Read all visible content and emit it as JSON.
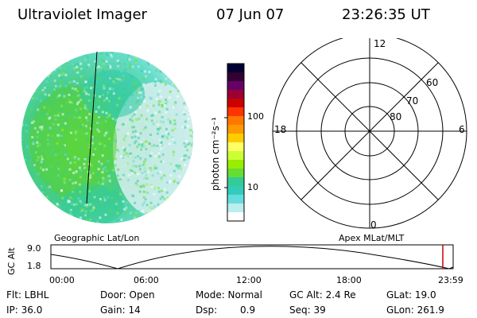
{
  "header": {
    "title": "Ultraviolet Imager",
    "date": "07 Jun 07",
    "time": "23:26:35 UT"
  },
  "colorbar": {
    "unit_label": "photon cm⁻²s⁻¹",
    "ticks": [
      "100",
      "10"
    ],
    "colors": [
      "#000033",
      "#330033",
      "#660066",
      "#990033",
      "#cc0000",
      "#ff3300",
      "#ff7700",
      "#ff9900",
      "#ffcc00",
      "#ffff66",
      "#ccff33",
      "#99ee00",
      "#66dd33",
      "#33cc99",
      "#33ccbb",
      "#66dddd",
      "#bbeeee",
      "#ffffff"
    ]
  },
  "polar": {
    "hour_labels": {
      "top": "12",
      "left": "18",
      "right": "6",
      "bottom": "0"
    },
    "lat_labels": [
      "60",
      "70",
      "80"
    ]
  },
  "labels": {
    "left_panel": "Geographic Lat/Lon",
    "right_panel": "Apex MLat/MLT"
  },
  "altitude_plot": {
    "ylabel": "GC Alt",
    "yticks": [
      "9.0",
      "1.8"
    ],
    "xticks": [
      "00:00",
      "06:00",
      "12:00",
      "18:00",
      "23:59"
    ],
    "marker_color": "#cc0000"
  },
  "status": {
    "flt": "Flt: LBHL",
    "ip": "IP: 36.0",
    "door": "Door: Open",
    "gain": "Gain: 14",
    "mode": "Mode: Normal",
    "dsp": "Dsp:",
    "dsp_value": "0.9",
    "gc_alt": "GC Alt: 2.4 Re",
    "seq": "Seq: 39",
    "glat": "GLat: 19.0",
    "glon": "GLon: 261.9"
  }
}
